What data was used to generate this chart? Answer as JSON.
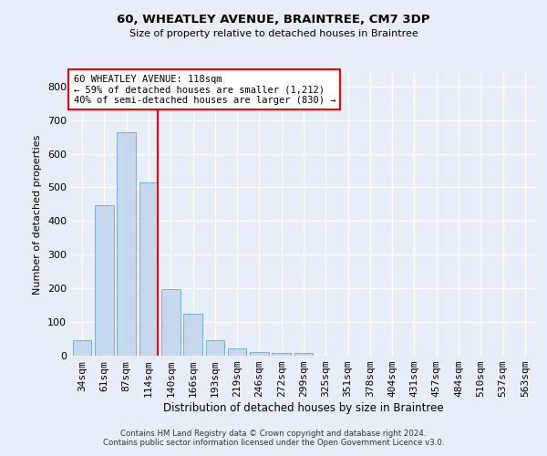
{
  "title": "60, WHEATLEY AVENUE, BRAINTREE, CM7 3DP",
  "subtitle": "Size of property relative to detached houses in Braintree",
  "xlabel": "Distribution of detached houses by size in Braintree",
  "ylabel": "Number of detached properties",
  "bar_labels": [
    "34sqm",
    "61sqm",
    "87sqm",
    "114sqm",
    "140sqm",
    "166sqm",
    "193sqm",
    "219sqm",
    "246sqm",
    "272sqm",
    "299sqm",
    "325sqm",
    "351sqm",
    "378sqm",
    "404sqm",
    "431sqm",
    "457sqm",
    "484sqm",
    "510sqm",
    "537sqm",
    "563sqm"
  ],
  "bar_values": [
    45,
    448,
    665,
    515,
    197,
    125,
    47,
    23,
    12,
    8,
    8,
    0,
    0,
    0,
    0,
    0,
    0,
    0,
    0,
    0,
    0
  ],
  "bar_color": "#c5d8ee",
  "bar_edgecolor": "#7aaed4",
  "vline_color": "red",
  "vline_x_index": 3.42,
  "ylim": [
    0,
    840
  ],
  "yticks": [
    0,
    100,
    200,
    300,
    400,
    500,
    600,
    700,
    800
  ],
  "annotation_text": "60 WHEATLEY AVENUE: 118sqm\n← 59% of detached houses are smaller (1,212)\n40% of semi-detached houses are larger (830) →",
  "annotation_box_color": "white",
  "annotation_box_edgecolor": "red",
  "background_color": "#e8eef7",
  "grid_color": "white",
  "footer_line1": "Contains HM Land Registry data © Crown copyright and database right 2024.",
  "footer_line2": "Contains public sector information licensed under the Open Government Licence v3.0."
}
